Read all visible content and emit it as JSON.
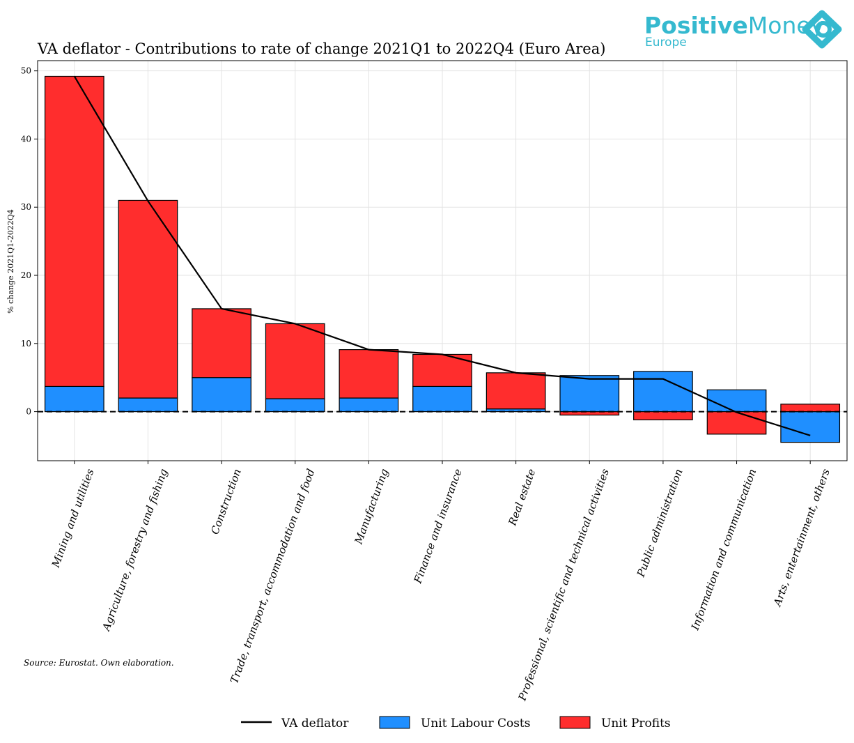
{
  "logo": {
    "part1": "Positive",
    "part2": "Money",
    "sub": "Europe"
  },
  "chart_data": {
    "type": "bar",
    "title": "VA deflator - Contributions to rate of change 2021Q1 to 2022Q4 (Euro Area)",
    "ylabel": "% change 2021Q1-2022Q4",
    "xlabel": "",
    "ylim": [
      -7.2,
      51.5
    ],
    "yticks": [
      0,
      10,
      20,
      30,
      40,
      50
    ],
    "grid": true,
    "categories": [
      "Mining and utilities",
      "Agriculture, forestry and fishing",
      "Construction",
      "Trade, transport, accommodation and food",
      "Manufacturing",
      "Finance and insurance",
      "Real estate",
      "Professional, scientific and technical activities",
      "Public administration",
      "Information and communication",
      "Arts, entertainment, others"
    ],
    "series": [
      {
        "name": "Unit Labour Costs",
        "type": "bar",
        "color": "#1f8fff",
        "values": [
          3.7,
          2.0,
          5.0,
          1.9,
          2.0,
          3.7,
          0.4,
          5.3,
          5.9,
          3.2,
          -4.5
        ]
      },
      {
        "name": "Unit Profits",
        "type": "bar",
        "color": "#ff2d2d",
        "values": [
          45.5,
          29.0,
          10.1,
          11.0,
          7.1,
          4.7,
          5.3,
          -0.5,
          -1.2,
          -3.3,
          1.1
        ]
      },
      {
        "name": "VA deflator",
        "type": "line",
        "color": "#000000",
        "values": [
          49.2,
          30.9,
          15.1,
          12.9,
          9.1,
          8.4,
          5.7,
          4.8,
          4.8,
          -0.1,
          -3.5
        ]
      }
    ],
    "legend_order": [
      "VA deflator",
      "Unit Labour Costs",
      "Unit Profits"
    ],
    "legend_position": "bottom-center",
    "source": "Source: Eurostat. Own elaboration."
  }
}
